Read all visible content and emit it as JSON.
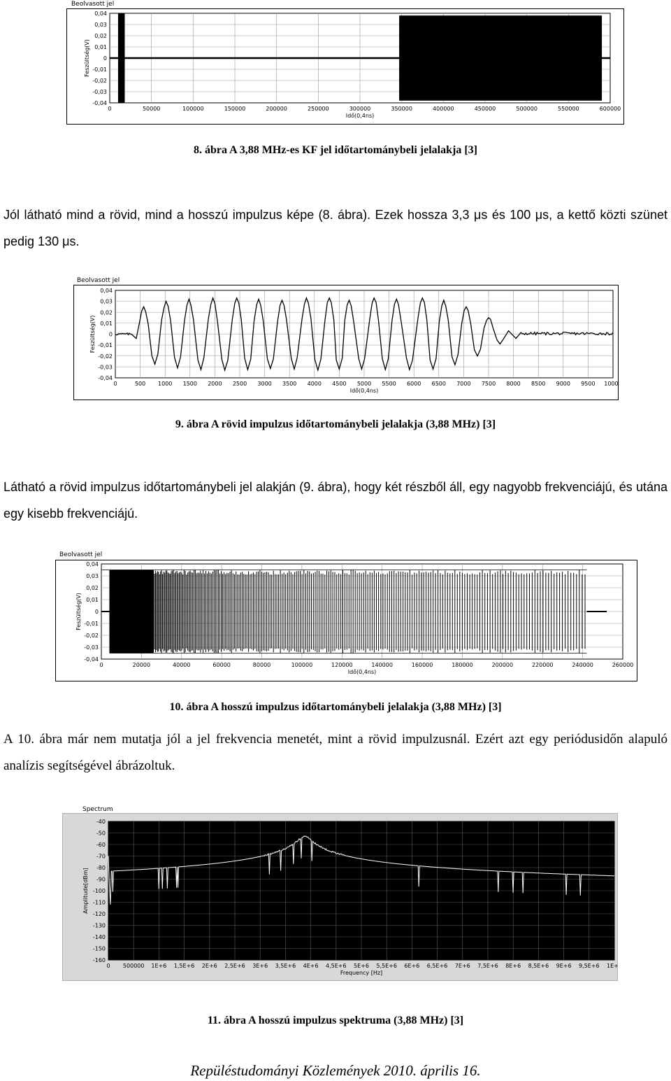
{
  "figures": [
    {
      "id": "fig8",
      "panel_title": "Beolvasott jel",
      "caption": "8. ábra A 3,88 MHz-es KF jel időtartománybeli jelalakja [3]",
      "chart_data": {
        "type": "line",
        "title": "Beolvasott jel",
        "xlabel": "Idő(0,4ns)",
        "ylabel": "Feszültség(V)",
        "xlim": [
          0,
          600000
        ],
        "ylim": [
          -0.04,
          0.04
        ],
        "x_ticks": [
          "0",
          "50000",
          "100000",
          "150000",
          "200000",
          "250000",
          "300000",
          "350000",
          "400000",
          "450000",
          "500000",
          "550000",
          "600000"
        ],
        "y_ticks": [
          "0,04",
          "0,03",
          "0,02",
          "0,01",
          "0",
          "-0,01",
          "-0,02",
          "-0,03",
          "-0,04"
        ],
        "grid": true,
        "segments": [
          {
            "x_start": 10000,
            "x_end": 18000,
            "amplitude": 0.04
          },
          {
            "x_start": 347000,
            "x_end": 590000,
            "amplitude": 0.038
          }
        ]
      }
    },
    {
      "id": "fig9",
      "panel_title": "Beolvasott jel",
      "caption": "9. ábra A rövid impulzus időtartománybeli jelalakja (3,88 MHz) [3]",
      "chart_data": {
        "type": "line",
        "title": "Beolvasott jel",
        "xlabel": "Idő(0,4ns)",
        "ylabel": "Feszültség(V)",
        "xlim": [
          0,
          10000
        ],
        "ylim": [
          -0.04,
          0.04
        ],
        "x_ticks": [
          "0",
          "500",
          "1000",
          "1500",
          "2000",
          "2500",
          "3000",
          "3500",
          "4000",
          "4500",
          "5000",
          "5500",
          "6000",
          "6500",
          "7000",
          "7500",
          "8000",
          "8500",
          "9000",
          "9500",
          "10000"
        ],
        "y_ticks": [
          "0,04",
          "0,03",
          "0,02",
          "0,01",
          "0",
          "-0,01",
          "-0,02",
          "-0,03",
          "-0,04"
        ],
        "grid": true,
        "peaks": [
          {
            "x": 570,
            "y": 0.025
          },
          {
            "x": 1020,
            "y": 0.03
          },
          {
            "x": 1480,
            "y": 0.032
          },
          {
            "x": 1960,
            "y": 0.033
          },
          {
            "x": 2440,
            "y": 0.033
          },
          {
            "x": 2880,
            "y": 0.032
          },
          {
            "x": 3350,
            "y": 0.031
          },
          {
            "x": 3840,
            "y": 0.033
          },
          {
            "x": 4300,
            "y": 0.033
          },
          {
            "x": 4700,
            "y": 0.031
          },
          {
            "x": 5200,
            "y": 0.033
          },
          {
            "x": 5650,
            "y": 0.032
          },
          {
            "x": 6170,
            "y": 0.033
          },
          {
            "x": 6600,
            "y": 0.031
          },
          {
            "x": 7050,
            "y": 0.025
          },
          {
            "x": 7500,
            "y": 0.015
          }
        ]
      }
    },
    {
      "id": "fig10",
      "panel_title": "Beolvasott jel",
      "caption": "10. ábra A hosszú impulzus időtartománybeli jelalakja (3,88 MHz) [3]",
      "chart_data": {
        "type": "line",
        "title": "Beolvasott jel",
        "xlabel": "Idő(0,4ns)",
        "ylabel": "Feszültség(V)",
        "xlim": [
          0,
          260000
        ],
        "ylim": [
          -0.04,
          0.04
        ],
        "x_ticks": [
          "0",
          "20000",
          "40000",
          "60000",
          "80000",
          "100000",
          "120000",
          "140000",
          "160000",
          "180000",
          "200000",
          "220000",
          "240000",
          "260000"
        ],
        "y_ticks": [
          "0,04",
          "0,03",
          "0,02",
          "0,01",
          "0",
          "-0,01",
          "-0,02",
          "-0,03",
          "-0,04"
        ],
        "grid": true,
        "segments": [
          {
            "x_start": 4000,
            "x_end": 242000,
            "amplitude": 0.035
          }
        ]
      }
    },
    {
      "id": "fig11",
      "panel_title": "Spectrum",
      "caption": "11. ábra A hosszú impulzus spektruma (3,88 MHz) [3]",
      "chart_data": {
        "type": "line",
        "title": "Spectrum",
        "xlabel": "Frequency [Hz]",
        "ylabel": "Amplitude[dBm]",
        "xlim": [
          0,
          10000000
        ],
        "ylim": [
          -160,
          -40
        ],
        "x_ticks": [
          "0",
          "500000",
          "1E+6",
          "1,5E+6",
          "2E+6",
          "2,5E+6",
          "3E+6",
          "3,5E+6",
          "4E+6",
          "4,5E+6",
          "5E+6",
          "5,5E+6",
          "6E+6",
          "6,5E+6",
          "7E+6",
          "7,5E+6",
          "8E+6",
          "8,5E+6",
          "9E+6",
          "9,5E+6",
          "1E+7"
        ],
        "y_ticks": [
          "-40",
          "-50",
          "-60",
          "-70",
          "-80",
          "-90",
          "-100",
          "-110",
          "-120",
          "-130",
          "-140",
          "-150",
          "-160"
        ],
        "grid": true,
        "peak": {
          "frequency": 3880000,
          "amplitude": -53
        },
        "noise_floor": -119
      }
    }
  ],
  "paragraphs": [
    {
      "id": "p1",
      "text": "Jól látható mind a rövid, mind a hosszú impulzus képe (8. ábra). Ezek hossza 3,3 μs és 100 μs, a kettő közti szünet pedig 130 μs."
    },
    {
      "id": "p2",
      "text": "Látható a rövid impulzus időtartománybeli jel alakján (9. ábra), hogy két részből áll, egy nagyobb frekvenciájú, és utána egy kisebb frekvenciájú."
    },
    {
      "id": "p3",
      "text": "A 10. ábra már nem mutatja jól a jel frekvencia menetét, mint a rövid impulzusnál. Ezért azt egy periódusidőn alapuló analízis segítségével ábrázoltuk."
    }
  ],
  "footer": "Repüléstudományi Közlemények 2010. április 16."
}
